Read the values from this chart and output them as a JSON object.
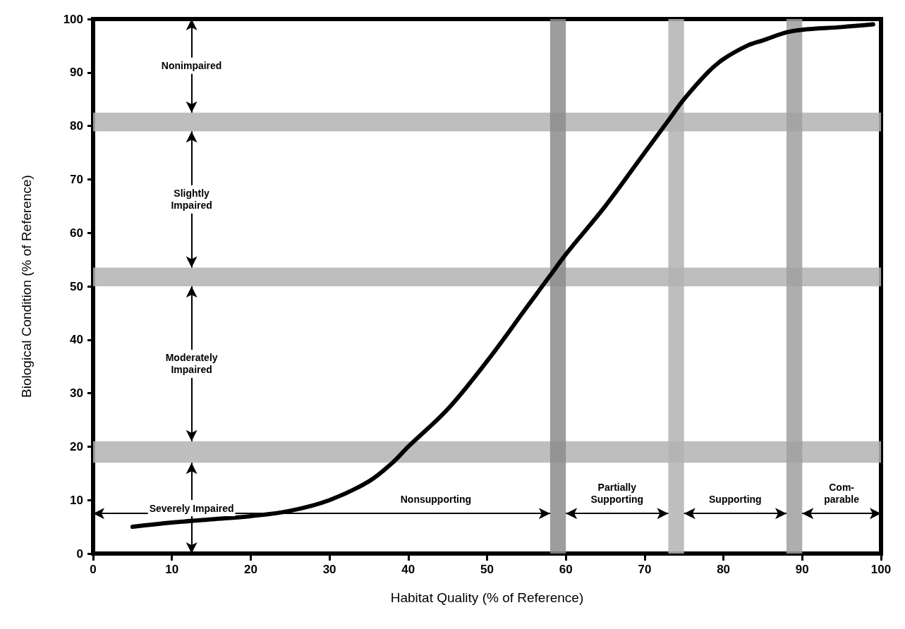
{
  "chart_data": {
    "type": "line",
    "xlabel": "Habitat Quality (% of Reference)",
    "ylabel": "Biological Condition (% of Reference)",
    "x": [
      5,
      10,
      15,
      20,
      25,
      30,
      35,
      38,
      40,
      45,
      50,
      55,
      58,
      60,
      65,
      70,
      73,
      75,
      78,
      80,
      83,
      85,
      88,
      90,
      95,
      99
    ],
    "series": [
      {
        "color": "#000000",
        "values": [
          5,
          5.8,
          6.4,
          7,
          8,
          10,
          13.5,
          17,
          20,
          27,
          36,
          46,
          52,
          56,
          65,
          75,
          81,
          85,
          90,
          92.5,
          95,
          96,
          97.5,
          98,
          98.5,
          99
        ]
      }
    ],
    "xlim": [
      0,
      100
    ],
    "xticks": [
      0,
      10,
      20,
      30,
      40,
      50,
      60,
      70,
      80,
      90,
      100
    ],
    "ylim": [
      0,
      100
    ],
    "yticks": [
      0,
      10,
      20,
      30,
      40,
      50,
      60,
      70,
      80,
      90,
      100
    ],
    "grid": false,
    "marker": "none",
    "line_style": "solid",
    "bands": [
      {
        "axis": "y",
        "from": 79,
        "to": 82.5,
        "color": "#b3b3b3"
      },
      {
        "axis": "y",
        "from": 50,
        "to": 53.5,
        "color": "#b3b3b3"
      },
      {
        "axis": "y",
        "from": 17,
        "to": 21,
        "color": "#b3b3b3"
      },
      {
        "axis": "x",
        "from": 58,
        "to": 60,
        "color": "#8c8c8c"
      },
      {
        "axis": "x",
        "from": 73,
        "to": 75,
        "color": "#b3b3b3"
      },
      {
        "axis": "x",
        "from": 88,
        "to": 90,
        "color": "#a0a0a0"
      }
    ],
    "annotations": [
      "Nonimpaired",
      "Slightly\nImpaired",
      "Moderately\nImpaired",
      "Severely Impaired",
      "Nonsupporting",
      "Partially\nSupporting",
      "Supporting",
      "Com-\nparable"
    ]
  }
}
